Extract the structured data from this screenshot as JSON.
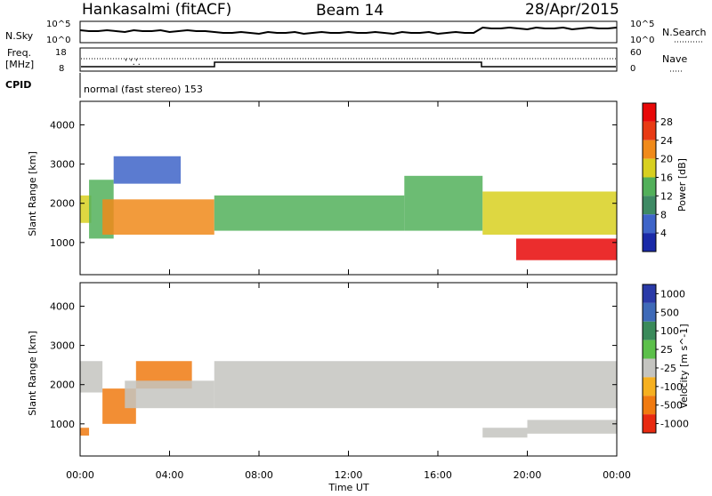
{
  "header": {
    "station": "Hankasalmi (fitACF)",
    "beam": "Beam 14",
    "date": "28/Apr/2015"
  },
  "nsky_panel": {
    "left_label": "N.Sky",
    "right_label": "N.Search",
    "left_top_tick": "10^5",
    "left_bottom_tick": "10^0",
    "right_top_tick": "10^5",
    "right_bottom_tick": "10^0"
  },
  "freq_panel": {
    "left_label_line1": "Freq.",
    "left_label_line2": "[MHz]",
    "right_label": "Nave",
    "left_top_tick": "18",
    "left_bottom_tick": "8",
    "right_top_tick": "60",
    "right_bottom_tick": "0"
  },
  "cpid_panel": {
    "label": "CPID",
    "text": "normal (fast stereo) 153"
  },
  "x_axis": {
    "label": "Time UT",
    "ticks": [
      "00:00",
      "04:00",
      "08:00",
      "12:00",
      "16:00",
      "20:00",
      "00:00"
    ]
  },
  "power_panel": {
    "ylabel": "Slant Range [km]",
    "yticks": [
      "1000",
      "2000",
      "3000",
      "4000"
    ],
    "colorbar_label": "Power [dB]",
    "colorbar_ticks": [
      "4",
      "8",
      "12",
      "16",
      "20",
      "24",
      "28"
    ],
    "colors": [
      "#1a2aa8",
      "#3e64c8",
      "#3e8a64",
      "#52b05a",
      "#d8d020",
      "#f08a1a",
      "#e83a14",
      "#e80808"
    ]
  },
  "velocity_panel": {
    "ylabel": "Slant Range [km]",
    "yticks": [
      "1000",
      "2000",
      "3000",
      "4000"
    ],
    "colorbar_label": "Velocity [m s^-1]",
    "colorbar_ticks": [
      "1000",
      "500",
      "100",
      "25",
      "-25",
      "-100",
      "-500",
      "-1000"
    ],
    "colors": [
      "#2a3aa8",
      "#3e6ab8",
      "#3a8a5a",
      "#5cc04a",
      "#c4c4c0",
      "#f6b020",
      "#f07a10",
      "#e82a10"
    ]
  },
  "chart_data": [
    {
      "type": "heatmap",
      "title": "Power",
      "xlabel": "Time UT",
      "ylabel": "Slant Range [km]",
      "xlim": [
        "00:00",
        "24:00"
      ],
      "ylim": [
        180,
        4600
      ],
      "colorbar": {
        "label": "Power [dB]",
        "range": [
          0,
          30
        ]
      },
      "regions": [
        {
          "t_start": 0.0,
          "t_end": 0.5,
          "range_km": [
            1500,
            2200
          ],
          "power_db": 16
        },
        {
          "t_start": 0.4,
          "t_end": 1.5,
          "range_km": [
            1100,
            2600
          ],
          "power_db": 12
        },
        {
          "t_start": 1.0,
          "t_end": 6.0,
          "range_km": [
            1200,
            2100
          ],
          "power_db": 22
        },
        {
          "t_start": 1.5,
          "t_end": 4.5,
          "range_km": [
            2500,
            3200
          ],
          "power_db": 6
        },
        {
          "t_start": 6.0,
          "t_end": 14.5,
          "range_km": [
            1300,
            2200
          ],
          "power_db": 14
        },
        {
          "t_start": 14.5,
          "t_end": 18.0,
          "range_km": [
            1300,
            2700
          ],
          "power_db": 14
        },
        {
          "t_start": 18.0,
          "t_end": 24.0,
          "range_km": [
            1200,
            2300
          ],
          "power_db": 18
        },
        {
          "t_start": 19.5,
          "t_end": 24.0,
          "range_km": [
            550,
            1100
          ],
          "power_db": 28
        }
      ]
    },
    {
      "type": "heatmap",
      "title": "Velocity",
      "xlabel": "Time UT",
      "ylabel": "Slant Range [km]",
      "xlim": [
        "00:00",
        "24:00"
      ],
      "ylim": [
        180,
        4600
      ],
      "colorbar": {
        "label": "Velocity [m s^-1]",
        "range": [
          -1000,
          1000
        ]
      },
      "regions": [
        {
          "t_start": 0.0,
          "t_end": 1.0,
          "range_km": [
            1800,
            2600
          ],
          "velocity": 0
        },
        {
          "t_start": 0.0,
          "t_end": 0.4,
          "range_km": [
            700,
            900
          ],
          "velocity": -500
        },
        {
          "t_start": 1.0,
          "t_end": 2.5,
          "range_km": [
            1000,
            1900
          ],
          "velocity": -500
        },
        {
          "t_start": 2.5,
          "t_end": 5.0,
          "range_km": [
            1900,
            2600
          ],
          "velocity": -500
        },
        {
          "t_start": 2.0,
          "t_end": 6.0,
          "range_km": [
            1400,
            2100
          ],
          "velocity": 0
        },
        {
          "t_start": 6.0,
          "t_end": 24.0,
          "range_km": [
            1400,
            2600
          ],
          "velocity": 0
        },
        {
          "t_start": 20.0,
          "t_end": 24.0,
          "range_km": [
            750,
            1100
          ],
          "velocity": -100
        },
        {
          "t_start": 18.0,
          "t_end": 20.0,
          "range_km": [
            650,
            900
          ],
          "velocity": 0
        }
      ]
    }
  ]
}
